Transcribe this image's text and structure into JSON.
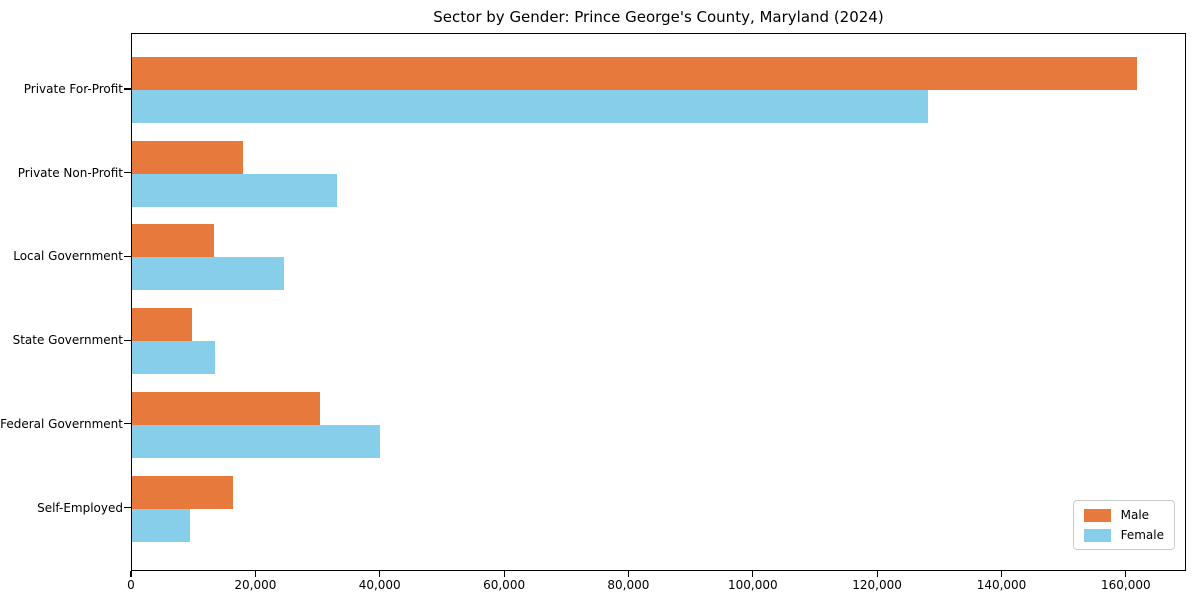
{
  "chart_data": {
    "type": "bar",
    "orientation": "horizontal",
    "title": "Sector by Gender: Prince George's County, Maryland (2024)",
    "xlabel": "",
    "ylabel": "",
    "grid": false,
    "categories": [
      "Private For-Profit",
      "Private Non-Profit",
      "Local Government",
      "State Government",
      "Federal Government",
      "Self-Employed"
    ],
    "series": [
      {
        "name": "Male",
        "color": "#e8793d",
        "values": [
          161600,
          17900,
          13200,
          9700,
          30300,
          16300
        ]
      },
      {
        "name": "Female",
        "color": "#87ceeb",
        "values": [
          128000,
          33000,
          24500,
          13300,
          39800,
          9400
        ]
      }
    ],
    "xlim": [
      0,
      169680
    ],
    "x_ticks": [
      {
        "value": 0,
        "label": "0"
      },
      {
        "value": 20000,
        "label": "20,000"
      },
      {
        "value": 40000,
        "label": "40,000"
      },
      {
        "value": 60000,
        "label": "60,000"
      },
      {
        "value": 80000,
        "label": "80,000"
      },
      {
        "value": 100000,
        "label": "100,000"
      },
      {
        "value": 120000,
        "label": "120,000"
      },
      {
        "value": 140000,
        "label": "140,000"
      },
      {
        "value": 160000,
        "label": "160,000"
      }
    ],
    "legend": {
      "position": "lower right",
      "entries": [
        "Male",
        "Female"
      ]
    }
  }
}
